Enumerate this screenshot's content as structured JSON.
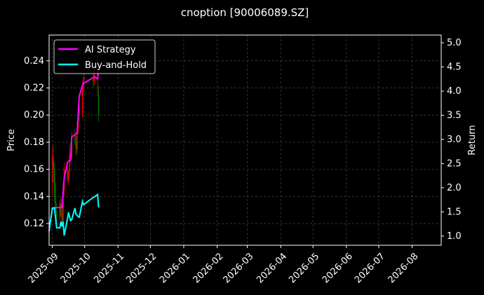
{
  "chart_data": {
    "type": "candlestick_returns",
    "title": "cnoption [90006089.SZ]",
    "y_label": "Price",
    "y2_label": "Return",
    "x": [
      "2025-08-29",
      "2025-09-01",
      "2025-09-02",
      "2025-09-03",
      "2025-09-04",
      "2025-09-05",
      "2025-09-08",
      "2025-09-09",
      "2025-09-10",
      "2025-09-11",
      "2025-09-12",
      "2025-09-15",
      "2025-09-16",
      "2025-09-17",
      "2025-09-18",
      "2025-09-19",
      "2025-09-22",
      "2025-09-23",
      "2025-09-24",
      "2025-09-25",
      "2025-09-26",
      "2025-09-29",
      "2025-09-30",
      "2025-10-09",
      "2025-10-10",
      "2025-10-13",
      "2025-10-14"
    ],
    "open": [
      0.112,
      0.15,
      0.168,
      0.16,
      0.14,
      0.13,
      0.125,
      0.135,
      0.128,
      0.122,
      0.145,
      0.16,
      0.152,
      0.158,
      0.172,
      0.17,
      0.185,
      0.18,
      0.175,
      0.19,
      0.205,
      0.2,
      0.222,
      0.228,
      0.225,
      0.23,
      0.215
    ],
    "high": [
      0.118,
      0.176,
      0.178,
      0.165,
      0.15,
      0.135,
      0.138,
      0.14,
      0.135,
      0.15,
      0.165,
      0.163,
      0.16,
      0.178,
      0.18,
      0.188,
      0.19,
      0.185,
      0.195,
      0.208,
      0.21,
      0.225,
      0.23,
      0.232,
      0.235,
      0.248,
      0.222
    ],
    "low": [
      0.11,
      0.14,
      0.15,
      0.135,
      0.125,
      0.12,
      0.122,
      0.125,
      0.118,
      0.12,
      0.14,
      0.15,
      0.148,
      0.155,
      0.165,
      0.168,
      0.178,
      0.17,
      0.172,
      0.186,
      0.195,
      0.198,
      0.215,
      0.22,
      0.222,
      0.214,
      0.195
    ],
    "close": [
      0.114,
      0.17,
      0.16,
      0.14,
      0.13,
      0.125,
      0.135,
      0.128,
      0.122,
      0.145,
      0.16,
      0.152,
      0.158,
      0.172,
      0.17,
      0.185,
      0.18,
      0.175,
      0.19,
      0.205,
      0.2,
      0.222,
      0.228,
      0.225,
      0.23,
      0.245,
      0.2
    ],
    "up_color": "#ff0000",
    "down_color": "#008000",
    "series": [
      {
        "name": "AI Strategy",
        "color": "#ff00ff",
        "axis": "y2",
        "values": [
          1.17,
          1.55,
          1.59,
          1.59,
          1.59,
          1.59,
          1.59,
          1.59,
          1.59,
          1.9,
          2.2,
          2.52,
          2.55,
          2.56,
          2.57,
          3.05,
          3.1,
          3.12,
          3.13,
          3.5,
          3.9,
          4.12,
          4.16,
          4.28,
          4.3,
          4.25,
          4.4
        ]
      },
      {
        "name": "Buy-and-Hold",
        "color": "#00ffff",
        "axis": "y2",
        "values": [
          1.1,
          1.58,
          1.58,
          1.58,
          1.38,
          1.17,
          1.17,
          1.3,
          1.2,
          1.3,
          1.01,
          1.35,
          1.49,
          1.4,
          1.32,
          1.34,
          1.58,
          1.45,
          1.43,
          1.4,
          1.39,
          1.72,
          1.65,
          1.8,
          1.81,
          1.86,
          1.59
        ]
      }
    ],
    "xlim": [
      "2025-08-29",
      "2026-08-28"
    ],
    "xticks": [
      "2025-09",
      "2025-10",
      "2025-11",
      "2025-12",
      "2026-01",
      "2026-02",
      "2026-03",
      "2026-04",
      "2026-05",
      "2026-06",
      "2026-07",
      "2026-08"
    ],
    "ylim": [
      0.104,
      0.259
    ],
    "yticks": [
      0.12,
      0.14,
      0.16,
      0.18,
      {
        "value": 0.2,
        "label": "0.20"
      },
      0.22,
      0.24
    ],
    "y2lim": [
      0.81,
      5.16
    ],
    "y2ticks": [
      {
        "value": 1,
        "label": "1.0"
      },
      1.5,
      {
        "value": 2,
        "label": "2.0"
      },
      2.5,
      {
        "value": 3,
        "label": "3.0"
      },
      3.5,
      {
        "value": 4,
        "label": "4.0"
      },
      4.5,
      {
        "value": 5,
        "label": "5.0"
      }
    ],
    "grid": true,
    "legend": "upper left"
  }
}
